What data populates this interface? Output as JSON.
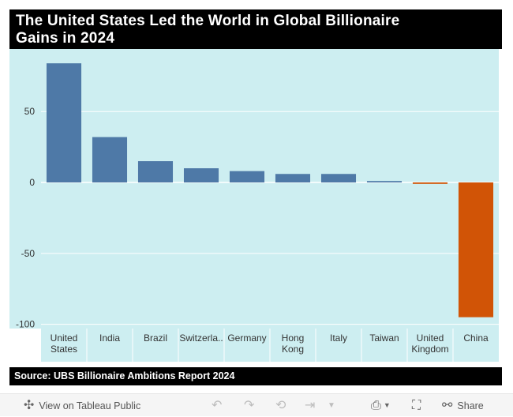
{
  "title": {
    "line1": "The United States Led the World in Global Billionaire",
    "line2": "Gains in 2024"
  },
  "source": "Source: UBS Billionaire Ambitions Report 2024",
  "toolbar": {
    "view_label": "View on Tableau Public",
    "share_label": "Share",
    "icons": [
      "tableau-logo-icon",
      "undo-icon",
      "redo-icon",
      "revert-icon",
      "forward-icon",
      "download-icon",
      "fullscreen-icon",
      "share-icon"
    ]
  },
  "colors": {
    "positive": "#4e79a7",
    "negative": "#d15406",
    "plot_bg": "#cdeef1",
    "grid": "#ffffff",
    "axis_text": "#333333"
  },
  "chart_data": {
    "type": "bar",
    "title": "The United States Led the World in Global Billionaire Gains in 2024",
    "xlabel": "",
    "ylabel": "",
    "categories": [
      [
        "United",
        "States"
      ],
      [
        "India"
      ],
      [
        "Brazil"
      ],
      [
        "Switzerla.."
      ],
      [
        "Germany"
      ],
      [
        "Hong",
        "Kong"
      ],
      [
        "Italy"
      ],
      [
        "Taiwan"
      ],
      [
        "United",
        "Kingdom"
      ],
      [
        "China"
      ]
    ],
    "values": [
      84,
      32,
      15,
      10,
      8,
      6,
      6,
      1,
      -1,
      -95
    ],
    "yticks": [
      -100,
      -50,
      0,
      50
    ],
    "ylim": [
      -103,
      93
    ],
    "grid": true,
    "legend": "none"
  }
}
